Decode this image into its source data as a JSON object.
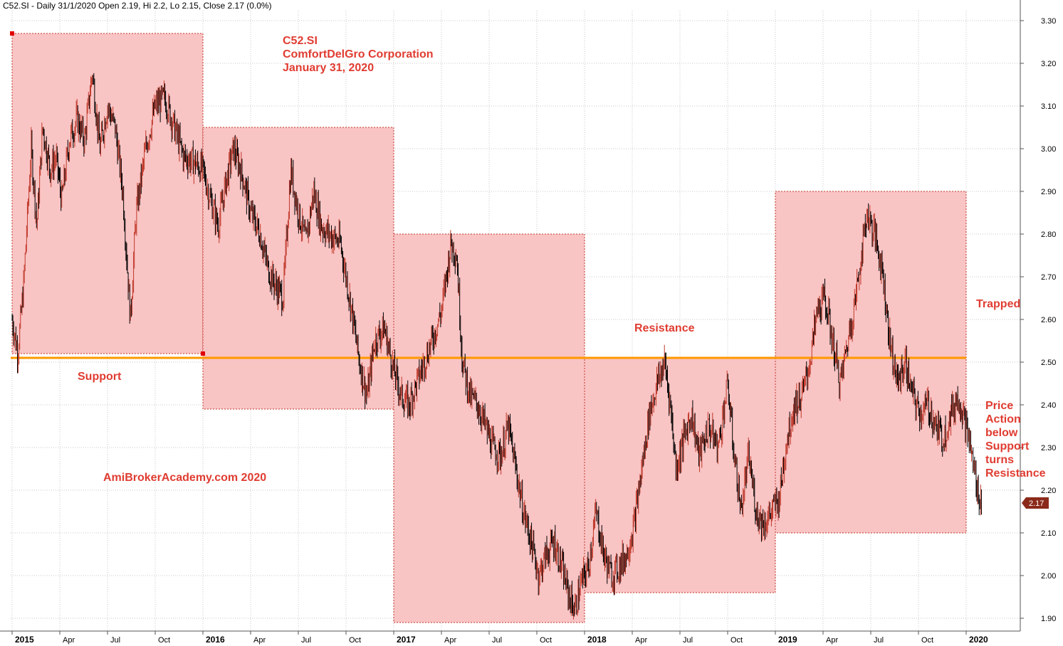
{
  "header": {
    "text": "C52.SI - Daily 31/1/2020 Open 2.19, Hi 2.2, Lo 2.15, Close 2.17 (0.0%)"
  },
  "chart_data": {
    "type": "candlestick",
    "symbol": "C52.SI",
    "ylim": [
      1.87,
      3.33
    ],
    "y_ticks": [
      "1.90",
      "2.00",
      "2.10",
      "2.20",
      "2.30",
      "2.40",
      "2.50",
      "2.60",
      "2.70",
      "2.80",
      "2.90",
      "3.00",
      "3.10",
      "3.20",
      "3.30"
    ],
    "x_ticks": [
      {
        "label": "2015",
        "year": true
      },
      {
        "label": "Apr",
        "year": false
      },
      {
        "label": "Jul",
        "year": false
      },
      {
        "label": "Oct",
        "year": false
      },
      {
        "label": "2016",
        "year": true
      },
      {
        "label": "Apr",
        "year": false
      },
      {
        "label": "Jul",
        "year": false
      },
      {
        "label": "Oct",
        "year": false
      },
      {
        "label": "2017",
        "year": true
      },
      {
        "label": "Apr",
        "year": false
      },
      {
        "label": "Jul",
        "year": false
      },
      {
        "label": "Oct",
        "year": false
      },
      {
        "label": "2018",
        "year": true
      },
      {
        "label": "Apr",
        "year": false
      },
      {
        "label": "Jul",
        "year": false
      },
      {
        "label": "Oct",
        "year": false
      },
      {
        "label": "2019",
        "year": true
      },
      {
        "label": "Apr",
        "year": false
      },
      {
        "label": "Jul",
        "year": false
      },
      {
        "label": "Oct",
        "year": false
      },
      {
        "label": "2020",
        "year": true
      }
    ],
    "support_level": 2.51,
    "last_close": "2.17",
    "price_path": [
      [
        2015.0,
        2.6
      ],
      [
        2015.03,
        2.52
      ],
      [
        2015.06,
        2.68
      ],
      [
        2015.1,
        3.0
      ],
      [
        2015.13,
        2.82
      ],
      [
        2015.16,
        3.05
      ],
      [
        2015.2,
        2.95
      ],
      [
        2015.23,
        2.98
      ],
      [
        2015.26,
        2.88
      ],
      [
        2015.3,
        3.02
      ],
      [
        2015.34,
        3.07
      ],
      [
        2015.38,
        3.02
      ],
      [
        2015.42,
        3.18
      ],
      [
        2015.46,
        3.0
      ],
      [
        2015.5,
        3.1
      ],
      [
        2015.54,
        3.05
      ],
      [
        2015.58,
        2.9
      ],
      [
        2015.62,
        2.6
      ],
      [
        2015.65,
        2.85
      ],
      [
        2015.7,
        3.0
      ],
      [
        2015.75,
        3.1
      ],
      [
        2015.8,
        3.12
      ],
      [
        2015.85,
        3.05
      ],
      [
        2015.9,
        2.98
      ],
      [
        2015.95,
        2.97
      ],
      [
        2016.0,
        2.95
      ],
      [
        2016.04,
        2.88
      ],
      [
        2016.08,
        2.82
      ],
      [
        2016.12,
        2.92
      ],
      [
        2016.16,
        3.0
      ],
      [
        2016.2,
        2.95
      ],
      [
        2016.25,
        2.85
      ],
      [
        2016.3,
        2.8
      ],
      [
        2016.34,
        2.72
      ],
      [
        2016.38,
        2.68
      ],
      [
        2016.42,
        2.65
      ],
      [
        2016.46,
        2.95
      ],
      [
        2016.5,
        2.85
      ],
      [
        2016.54,
        2.78
      ],
      [
        2016.58,
        2.9
      ],
      [
        2016.62,
        2.82
      ],
      [
        2016.66,
        2.8
      ],
      [
        2016.72,
        2.78
      ],
      [
        2016.78,
        2.62
      ],
      [
        2016.82,
        2.5
      ],
      [
        2016.86,
        2.42
      ],
      [
        2016.9,
        2.55
      ],
      [
        2016.95,
        2.58
      ],
      [
        2017.0,
        2.48
      ],
      [
        2017.04,
        2.42
      ],
      [
        2017.08,
        2.4
      ],
      [
        2017.12,
        2.45
      ],
      [
        2017.16,
        2.5
      ],
      [
        2017.2,
        2.55
      ],
      [
        2017.25,
        2.62
      ],
      [
        2017.3,
        2.78
      ],
      [
        2017.33,
        2.75
      ],
      [
        2017.36,
        2.5
      ],
      [
        2017.4,
        2.42
      ],
      [
        2017.44,
        2.4
      ],
      [
        2017.48,
        2.35
      ],
      [
        2017.52,
        2.3
      ],
      [
        2017.56,
        2.28
      ],
      [
        2017.6,
        2.35
      ],
      [
        2017.64,
        2.25
      ],
      [
        2017.68,
        2.15
      ],
      [
        2017.72,
        2.08
      ],
      [
        2017.76,
        2.0
      ],
      [
        2017.8,
        2.05
      ],
      [
        2017.84,
        2.08
      ],
      [
        2017.88,
        2.02
      ],
      [
        2017.92,
        1.95
      ],
      [
        2017.95,
        1.92
      ],
      [
        2017.98,
        1.98
      ],
      [
        2018.02,
        2.02
      ],
      [
        2018.06,
        2.15
      ],
      [
        2018.1,
        2.05
      ],
      [
        2018.14,
        2.0
      ],
      [
        2018.18,
        2.02
      ],
      [
        2018.22,
        2.05
      ],
      [
        2018.26,
        2.12
      ],
      [
        2018.3,
        2.25
      ],
      [
        2018.34,
        2.38
      ],
      [
        2018.38,
        2.45
      ],
      [
        2018.42,
        2.5
      ],
      [
        2018.45,
        2.4
      ],
      [
        2018.48,
        2.25
      ],
      [
        2018.52,
        2.32
      ],
      [
        2018.56,
        2.38
      ],
      [
        2018.6,
        2.28
      ],
      [
        2018.65,
        2.35
      ],
      [
        2018.7,
        2.3
      ],
      [
        2018.75,
        2.45
      ],
      [
        2018.78,
        2.3
      ],
      [
        2018.82,
        2.15
      ],
      [
        2018.86,
        2.28
      ],
      [
        2018.9,
        2.15
      ],
      [
        2018.94,
        2.12
      ],
      [
        2018.98,
        2.15
      ],
      [
        2019.02,
        2.18
      ],
      [
        2019.06,
        2.32
      ],
      [
        2019.1,
        2.4
      ],
      [
        2019.14,
        2.42
      ],
      [
        2019.18,
        2.5
      ],
      [
        2019.22,
        2.62
      ],
      [
        2019.26,
        2.65
      ],
      [
        2019.3,
        2.55
      ],
      [
        2019.34,
        2.45
      ],
      [
        2019.38,
        2.55
      ],
      [
        2019.42,
        2.65
      ],
      [
        2019.45,
        2.75
      ],
      [
        2019.48,
        2.85
      ],
      [
        2019.52,
        2.8
      ],
      [
        2019.56,
        2.72
      ],
      [
        2019.6,
        2.55
      ],
      [
        2019.64,
        2.45
      ],
      [
        2019.68,
        2.5
      ],
      [
        2019.72,
        2.42
      ],
      [
        2019.76,
        2.38
      ],
      [
        2019.8,
        2.4
      ],
      [
        2019.84,
        2.35
      ],
      [
        2019.88,
        2.32
      ],
      [
        2019.92,
        2.38
      ],
      [
        2019.96,
        2.42
      ],
      [
        2020.0,
        2.35
      ],
      [
        2020.03,
        2.28
      ],
      [
        2020.06,
        2.2
      ],
      [
        2020.08,
        2.17
      ]
    ],
    "boxes": [
      {
        "start": 2015.0,
        "end": 2016.0,
        "top": 3.27,
        "bottom": 2.52
      },
      {
        "start": 2016.0,
        "end": 2017.0,
        "top": 3.05,
        "bottom": 2.39
      },
      {
        "start": 2017.0,
        "end": 2018.0,
        "top": 2.8,
        "bottom": 1.89
      },
      {
        "start": 2018.0,
        "end": 2019.0,
        "top": 2.51,
        "bottom": 1.96
      },
      {
        "start": 2019.0,
        "end": 2020.0,
        "top": 2.9,
        "bottom": 2.1
      }
    ],
    "annotations": [
      {
        "id": "title",
        "lines": [
          "C52.SI",
          "ComfortDelGro Corporation",
          "January 31, 2020"
        ]
      },
      {
        "id": "support",
        "lines": [
          "Support"
        ]
      },
      {
        "id": "resistance",
        "lines": [
          "Resistance"
        ]
      },
      {
        "id": "trapped",
        "lines": [
          "Trapped"
        ]
      },
      {
        "id": "price-action",
        "lines": [
          "Price",
          "Action",
          "below",
          "Support",
          "turns",
          "Resistance"
        ]
      },
      {
        "id": "watermark",
        "lines": [
          "AmiBrokerAcademy.com  2020"
        ]
      }
    ]
  }
}
